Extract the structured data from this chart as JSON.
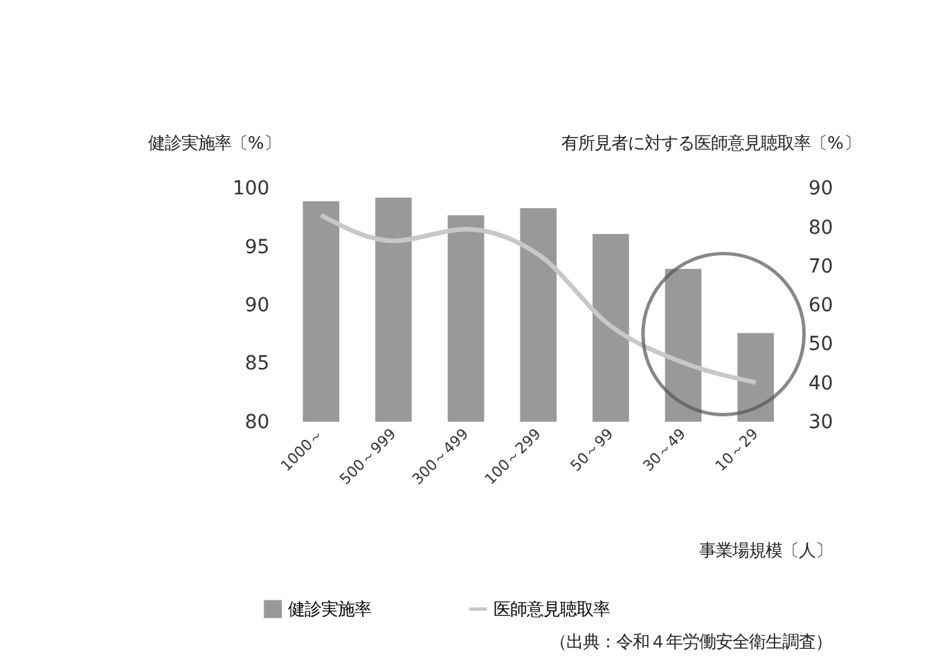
{
  "chart_data": {
    "type": "bar",
    "ylabel": "健診実施率〔%〕",
    "y2label": "有所見者に対する医師意見聴取率〔%〕",
    "xlabel": "事業場規模〔人〕",
    "categories": [
      "1000～",
      "500～999",
      "300～499",
      "100～299",
      "50～99",
      "30～49",
      "10～29"
    ],
    "series": [
      {
        "name": "健診実施率",
        "color": "#999999",
        "values": [
          98.9,
          99.2,
          97.7,
          98.3,
          96.1,
          93.1,
          87.6
        ]
      },
      {
        "name": "医師意見聴取率",
        "type": "line",
        "axis": "y2",
        "color": "#c8c8c8",
        "values": [
          83.1,
          76.5,
          79.5,
          73,
          54.6,
          45.2,
          40.1
        ]
      }
    ],
    "ylim": [
      80,
      100
    ],
    "yticks": [
      80,
      85,
      90,
      95,
      100
    ],
    "y2lim": [
      30,
      90
    ],
    "y2ticks": [
      30,
      40,
      50,
      60,
      70,
      80,
      90
    ],
    "grid": false,
    "legend": "bottom",
    "annotations": [
      "（出典：令和４年労働安全衛生調査）"
    ]
  }
}
